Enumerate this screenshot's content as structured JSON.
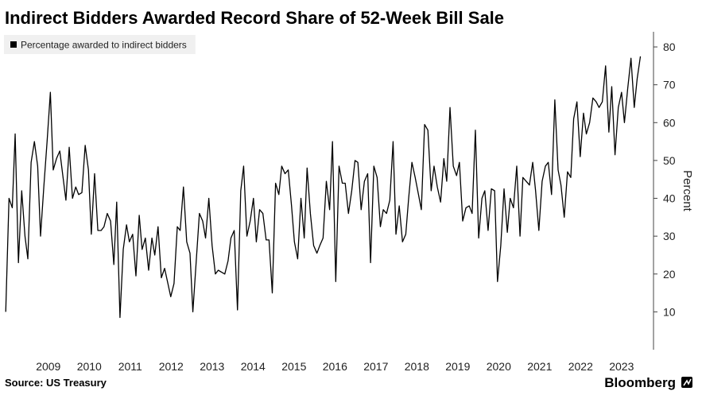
{
  "chart_data": {
    "type": "line",
    "title": "Indirect Bidders Awarded Record Share of 52-Week Bill Sale",
    "y_label": "Percent",
    "source": "Source: US Treasury",
    "brand": "Bloomberg",
    "x": [
      2008.46,
      2008.54,
      2008.62,
      2008.69,
      2008.77,
      2008.85,
      2008.93,
      2009.0,
      2009.08,
      2009.16,
      2009.24,
      2009.31,
      2009.39,
      2009.47,
      2009.55,
      2009.62,
      2009.7,
      2009.78,
      2009.86,
      2009.93,
      2010.01,
      2010.09,
      2010.17,
      2010.24,
      2010.32,
      2010.4,
      2010.48,
      2010.55,
      2010.63,
      2010.71,
      2010.79,
      2010.86,
      2010.94,
      2011.02,
      2011.1,
      2011.17,
      2011.25,
      2011.33,
      2011.41,
      2011.48,
      2011.56,
      2011.64,
      2011.72,
      2011.79,
      2011.87,
      2011.95,
      2012.03,
      2012.1,
      2012.18,
      2012.26,
      2012.34,
      2012.41,
      2012.49,
      2012.57,
      2012.65,
      2012.72,
      2012.8,
      2012.88,
      2012.96,
      2013.03,
      2013.11,
      2013.19,
      2013.27,
      2013.34,
      2013.42,
      2013.5,
      2013.58,
      2013.65,
      2013.73,
      2013.81,
      2013.89,
      2013.96,
      2014.04,
      2014.12,
      2014.2,
      2014.27,
      2014.35,
      2014.43,
      2014.51,
      2014.58,
      2014.66,
      2014.74,
      2014.82,
      2014.89,
      2014.97,
      2015.05,
      2015.13,
      2015.2,
      2015.28,
      2015.36,
      2015.44,
      2015.51,
      2015.59,
      2015.67,
      2015.75,
      2015.82,
      2015.9,
      2015.98,
      2016.06,
      2016.13,
      2016.21,
      2016.29,
      2016.37,
      2016.44,
      2016.52,
      2016.6,
      2016.68,
      2016.75,
      2016.83,
      2016.91,
      2016.99,
      2017.06,
      2017.14,
      2017.22,
      2017.3,
      2017.37,
      2017.45,
      2017.53,
      2017.61,
      2017.68,
      2017.76,
      2017.84,
      2017.92,
      2017.99,
      2018.07,
      2018.15,
      2018.23,
      2018.3,
      2018.38,
      2018.46,
      2018.54,
      2018.61,
      2018.69,
      2018.77,
      2018.85,
      2018.92,
      2019.0,
      2019.08,
      2019.16,
      2019.23,
      2019.31,
      2019.39,
      2019.47,
      2019.54,
      2019.62,
      2019.7,
      2019.78,
      2019.85,
      2019.93,
      2020.01,
      2020.09,
      2020.16,
      2020.24,
      2020.32,
      2020.4,
      2020.47,
      2020.55,
      2020.63,
      2020.71,
      2020.78,
      2020.86,
      2020.94,
      2021.02,
      2021.09,
      2021.17,
      2021.25,
      2021.33,
      2021.4,
      2021.48,
      2021.56,
      2021.64,
      2021.71,
      2021.79,
      2021.87,
      2021.95,
      2022.02,
      2022.1,
      2022.18,
      2022.26,
      2022.33,
      2022.41,
      2022.49,
      2022.57,
      2022.64,
      2022.72,
      2022.8,
      2022.88,
      2022.95,
      2023.03,
      2023.11,
      2023.19,
      2023.26,
      2023.34,
      2023.42,
      2023.5,
      2023.57,
      2023.65,
      2023.73,
      2023.81,
      2023.88,
      2023.96
    ],
    "series": [
      {
        "name": "Percentage awarded to indirect bidders",
        "color": "#000000",
        "values": [
          10,
          40,
          37.5,
          57,
          23,
          42,
          30,
          24,
          49.5,
          55,
          48.5,
          30,
          43,
          55,
          68,
          47.5,
          50.5,
          52.5,
          45.5,
          39.5,
          53.5,
          40,
          43,
          41,
          41.5,
          54,
          47.5,
          30.5,
          46.5,
          31.5,
          31.5,
          32.5,
          36,
          34,
          22.5,
          39,
          8.5,
          26.5,
          33,
          28.5,
          30.5,
          19.5,
          35.5,
          26.5,
          29.5,
          21,
          29.5,
          25,
          32.5,
          19,
          21.5,
          18,
          14,
          17.5,
          32.5,
          31.5,
          43,
          28.5,
          25.5,
          10,
          23,
          36,
          34,
          29.5,
          40,
          27.5,
          20,
          21,
          20.5,
          20,
          23.5,
          29.5,
          31.5,
          10.5,
          42,
          48.5,
          30,
          34,
          40,
          28.5,
          37,
          36,
          29,
          29,
          15,
          44,
          41,
          48.5,
          46.5,
          47.5,
          38,
          28.5,
          24,
          40,
          29.5,
          48,
          36,
          27.5,
          25.5,
          27.5,
          29.5,
          44.5,
          37,
          55,
          18,
          48.5,
          44,
          44,
          36,
          42,
          50,
          49.5,
          37,
          44.5,
          46.5,
          23,
          48.5,
          45.5,
          32.5,
          37,
          36,
          39.5,
          55,
          30.5,
          38,
          28.5,
          30.5,
          40,
          49.5,
          45.5,
          41,
          37,
          59.5,
          58,
          42,
          48.5,
          43,
          39,
          50.5,
          44.5,
          64,
          48.5,
          46,
          49.5,
          34,
          37.5,
          38,
          36,
          58,
          29.5,
          40,
          42,
          31.5,
          42.5,
          42,
          18,
          27.5,
          42.5,
          31,
          40,
          37.5,
          48.5,
          30,
          45.5,
          44.5,
          43.5,
          49.5,
          42,
          31.5,
          44.5,
          48.5,
          49.5,
          41,
          66,
          47.5,
          43.5,
          35,
          47,
          45.5,
          61,
          65.5,
          51,
          62.5,
          57,
          60,
          66.5,
          65.5,
          64,
          65.5,
          75,
          57.5,
          69.5,
          51.5,
          64,
          68,
          60,
          69,
          77,
          64,
          71.5,
          77.5
        ]
      }
    ],
    "xlim": [
      2008.32,
      2024.28
    ],
    "xticks": [
      {
        "value": 2009.5,
        "label": "2009"
      },
      {
        "value": 2010.5,
        "label": "2010"
      },
      {
        "value": 2011.5,
        "label": "2011"
      },
      {
        "value": 2012.5,
        "label": "2012"
      },
      {
        "value": 2013.5,
        "label": "2013"
      },
      {
        "value": 2014.5,
        "label": "2014"
      },
      {
        "value": 2015.5,
        "label": "2015"
      },
      {
        "value": 2016.5,
        "label": "2016"
      },
      {
        "value": 2017.5,
        "label": "2017"
      },
      {
        "value": 2018.5,
        "label": "2018"
      },
      {
        "value": 2019.5,
        "label": "2019"
      },
      {
        "value": 2020.5,
        "label": "2020"
      },
      {
        "value": 2021.5,
        "label": "2021"
      },
      {
        "value": 2022.5,
        "label": "2022"
      },
      {
        "value": 2023.5,
        "label": "2023"
      }
    ],
    "ylim": [
      0,
      84
    ],
    "yticks": [
      10,
      20,
      30,
      40,
      50,
      60,
      70,
      80
    ],
    "y_axis_side": "right",
    "grid": false,
    "legend": "top-left"
  }
}
